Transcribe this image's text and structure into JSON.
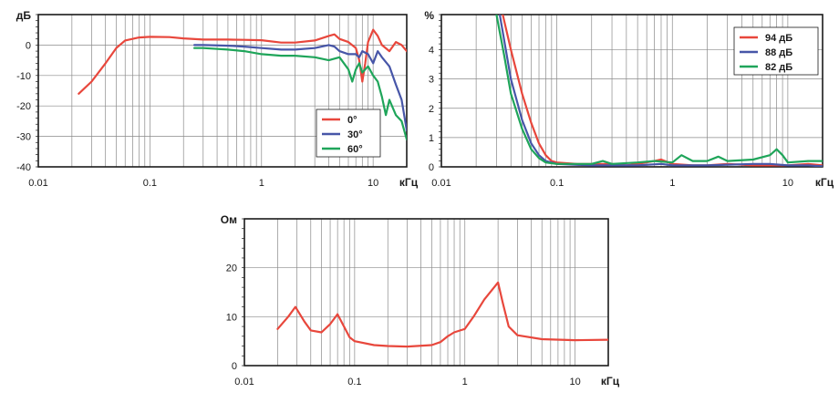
{
  "chart_data": [
    {
      "id": "frequency-response",
      "type": "line",
      "x_scale": "log",
      "xlim": [
        0.01,
        20
      ],
      "ylim": [
        -40,
        10
      ],
      "x_unit": "кГц",
      "y_unit": "дБ",
      "x_ticks": [
        {
          "value": 0.01,
          "label": "0.01"
        },
        {
          "value": 0.1,
          "label": "0.1"
        },
        {
          "value": 1,
          "label": "1"
        },
        {
          "value": 10,
          "label": "10"
        }
      ],
      "y_ticks": [
        {
          "value": 0,
          "label": "0"
        },
        {
          "value": -10,
          "label": "-10"
        },
        {
          "value": -20,
          "label": "-20"
        },
        {
          "value": -30,
          "label": "-30"
        },
        {
          "value": -40,
          "label": "-40"
        }
      ],
      "grid": true,
      "legend_position": "bottom-right",
      "series": [
        {
          "name": "0°",
          "color": "#e8473c",
          "points": [
            [
              0.023,
              -16
            ],
            [
              0.03,
              -12
            ],
            [
              0.04,
              -6
            ],
            [
              0.05,
              -1
            ],
            [
              0.06,
              1.5
            ],
            [
              0.08,
              2.5
            ],
            [
              0.1,
              2.7
            ],
            [
              0.15,
              2.6
            ],
            [
              0.2,
              2.2
            ],
            [
              0.3,
              1.8
            ],
            [
              0.5,
              1.8
            ],
            [
              0.7,
              1.7
            ],
            [
              1,
              1.6
            ],
            [
              1.5,
              0.8
            ],
            [
              2,
              0.8
            ],
            [
              3,
              1.5
            ],
            [
              4,
              3
            ],
            [
              4.5,
              3.5
            ],
            [
              5,
              2
            ],
            [
              6,
              1
            ],
            [
              7,
              -1
            ],
            [
              7.5,
              -5
            ],
            [
              8,
              -12
            ],
            [
              8.5,
              -6
            ],
            [
              9,
              1
            ],
            [
              10,
              5
            ],
            [
              11,
              3
            ],
            [
              12,
              0
            ],
            [
              14,
              -2
            ],
            [
              16,
              1
            ],
            [
              18,
              0
            ],
            [
              20,
              -2
            ]
          ]
        },
        {
          "name": "30°",
          "color": "#4756a8",
          "points": [
            [
              0.25,
              0
            ],
            [
              0.3,
              0
            ],
            [
              0.5,
              -0.2
            ],
            [
              0.7,
              -0.5
            ],
            [
              1,
              -1
            ],
            [
              1.5,
              -1.5
            ],
            [
              2,
              -1.5
            ],
            [
              3,
              -1
            ],
            [
              4,
              0
            ],
            [
              4.5,
              -0.5
            ],
            [
              5,
              -2
            ],
            [
              6,
              -3
            ],
            [
              7,
              -3
            ],
            [
              7.5,
              -4
            ],
            [
              8,
              -2
            ],
            [
              9,
              -3
            ],
            [
              10,
              -6
            ],
            [
              11,
              -2
            ],
            [
              12,
              -4
            ],
            [
              14,
              -7
            ],
            [
              16,
              -13
            ],
            [
              18,
              -18
            ],
            [
              20,
              -28
            ]
          ]
        },
        {
          "name": "60°",
          "color": "#1fa55a",
          "points": [
            [
              0.25,
              -1
            ],
            [
              0.3,
              -1
            ],
            [
              0.5,
              -1.5
            ],
            [
              0.7,
              -2
            ],
            [
              1,
              -3
            ],
            [
              1.5,
              -3.5
            ],
            [
              2,
              -3.5
            ],
            [
              3,
              -4
            ],
            [
              4,
              -5
            ],
            [
              5,
              -4
            ],
            [
              6,
              -8
            ],
            [
              6.5,
              -12
            ],
            [
              7,
              -8
            ],
            [
              7.5,
              -6
            ],
            [
              8,
              -9
            ],
            [
              9,
              -7
            ],
            [
              10,
              -10
            ],
            [
              11,
              -12
            ],
            [
              12,
              -17
            ],
            [
              13,
              -23
            ],
            [
              14,
              -18
            ],
            [
              16,
              -23
            ],
            [
              18,
              -25
            ],
            [
              20,
              -31
            ]
          ]
        }
      ]
    },
    {
      "id": "thd",
      "type": "line",
      "x_scale": "log",
      "xlim": [
        0.01,
        20
      ],
      "ylim": [
        0,
        5.2
      ],
      "x_unit": "кГц",
      "y_unit": "%",
      "x_ticks": [
        {
          "value": 0.01,
          "label": "0.01"
        },
        {
          "value": 0.1,
          "label": "0.1"
        },
        {
          "value": 1,
          "label": "1"
        },
        {
          "value": 10,
          "label": "10"
        }
      ],
      "y_ticks": [
        {
          "value": 0,
          "label": "0"
        },
        {
          "value": 1,
          "label": "1"
        },
        {
          "value": 2,
          "label": "2"
        },
        {
          "value": 3,
          "label": "3"
        },
        {
          "value": 4,
          "label": "4"
        }
      ],
      "grid": true,
      "legend_position": "top-right",
      "series": [
        {
          "name": "94 дБ",
          "color": "#e8473c",
          "points": [
            [
              0.034,
              5.2
            ],
            [
              0.04,
              4
            ],
            [
              0.05,
              2.5
            ],
            [
              0.06,
              1.5
            ],
            [
              0.07,
              0.8
            ],
            [
              0.08,
              0.4
            ],
            [
              0.09,
              0.2
            ],
            [
              0.1,
              0.15
            ],
            [
              0.15,
              0.1
            ],
            [
              0.2,
              0.1
            ],
            [
              0.3,
              0.1
            ],
            [
              0.4,
              0.05
            ],
            [
              0.5,
              0.1
            ],
            [
              0.7,
              0.2
            ],
            [
              0.8,
              0.25
            ],
            [
              1,
              0.1
            ],
            [
              1.5,
              0.05
            ],
            [
              2,
              0.05
            ],
            [
              3,
              0.1
            ],
            [
              5,
              0.05
            ],
            [
              8,
              0.05
            ],
            [
              10,
              0.05
            ],
            [
              15,
              0.1
            ],
            [
              20,
              0.05
            ]
          ]
        },
        {
          "name": "88 дБ",
          "color": "#4756a8",
          "points": [
            [
              0.032,
              5.2
            ],
            [
              0.04,
              3
            ],
            [
              0.05,
              1.6
            ],
            [
              0.06,
              0.8
            ],
            [
              0.07,
              0.4
            ],
            [
              0.08,
              0.2
            ],
            [
              0.1,
              0.1
            ],
            [
              0.2,
              0.05
            ],
            [
              0.3,
              0.05
            ],
            [
              0.5,
              0.05
            ],
            [
              0.8,
              0.1
            ],
            [
              1,
              0.05
            ],
            [
              2,
              0.05
            ],
            [
              5,
              0.1
            ],
            [
              7,
              0.1
            ],
            [
              10,
              0.05
            ],
            [
              15,
              0.05
            ],
            [
              20,
              0.02
            ]
          ]
        },
        {
          "name": "82 дБ",
          "color": "#1fa55a",
          "points": [
            [
              0.03,
              5.2
            ],
            [
              0.035,
              3.8
            ],
            [
              0.04,
              2.5
            ],
            [
              0.05,
              1.3
            ],
            [
              0.06,
              0.6
            ],
            [
              0.07,
              0.3
            ],
            [
              0.08,
              0.15
            ],
            [
              0.1,
              0.1
            ],
            [
              0.2,
              0.1
            ],
            [
              0.25,
              0.2
            ],
            [
              0.3,
              0.1
            ],
            [
              0.5,
              0.15
            ],
            [
              0.7,
              0.2
            ],
            [
              1,
              0.15
            ],
            [
              1.2,
              0.4
            ],
            [
              1.5,
              0.2
            ],
            [
              2,
              0.2
            ],
            [
              2.5,
              0.35
            ],
            [
              3,
              0.2
            ],
            [
              5,
              0.25
            ],
            [
              7,
              0.4
            ],
            [
              8,
              0.6
            ],
            [
              9,
              0.4
            ],
            [
              10,
              0.15
            ],
            [
              15,
              0.2
            ],
            [
              20,
              0.2
            ]
          ]
        }
      ]
    },
    {
      "id": "impedance",
      "type": "line",
      "x_scale": "log",
      "xlim": [
        0.01,
        20
      ],
      "ylim": [
        0,
        30
      ],
      "x_unit": "кГц",
      "y_unit": "Ом",
      "x_ticks": [
        {
          "value": 0.01,
          "label": "0.01"
        },
        {
          "value": 0.1,
          "label": "0.1"
        },
        {
          "value": 1,
          "label": "1"
        },
        {
          "value": 10,
          "label": "10"
        }
      ],
      "y_ticks": [
        {
          "value": 0,
          "label": "0"
        },
        {
          "value": 10,
          "label": "10"
        },
        {
          "value": 20,
          "label": "20"
        }
      ],
      "grid": true,
      "series": [
        {
          "color": "#e8473c",
          "points": [
            [
              0.02,
              7.5
            ],
            [
              0.025,
              10
            ],
            [
              0.029,
              12
            ],
            [
              0.035,
              9
            ],
            [
              0.04,
              7.2
            ],
            [
              0.05,
              6.8
            ],
            [
              0.06,
              8.5
            ],
            [
              0.07,
              10.5
            ],
            [
              0.08,
              8
            ],
            [
              0.09,
              5.8
            ],
            [
              0.1,
              5
            ],
            [
              0.15,
              4.2
            ],
            [
              0.2,
              4
            ],
            [
              0.3,
              3.9
            ],
            [
              0.5,
              4.2
            ],
            [
              0.6,
              4.8
            ],
            [
              0.7,
              6
            ],
            [
              0.8,
              6.8
            ],
            [
              1,
              7.5
            ],
            [
              1.2,
              10
            ],
            [
              1.5,
              13.5
            ],
            [
              2,
              17
            ],
            [
              2.2,
              13
            ],
            [
              2.5,
              8
            ],
            [
              3,
              6.2
            ],
            [
              5,
              5.4
            ],
            [
              10,
              5.2
            ],
            [
              20,
              5.3
            ]
          ]
        }
      ]
    }
  ]
}
